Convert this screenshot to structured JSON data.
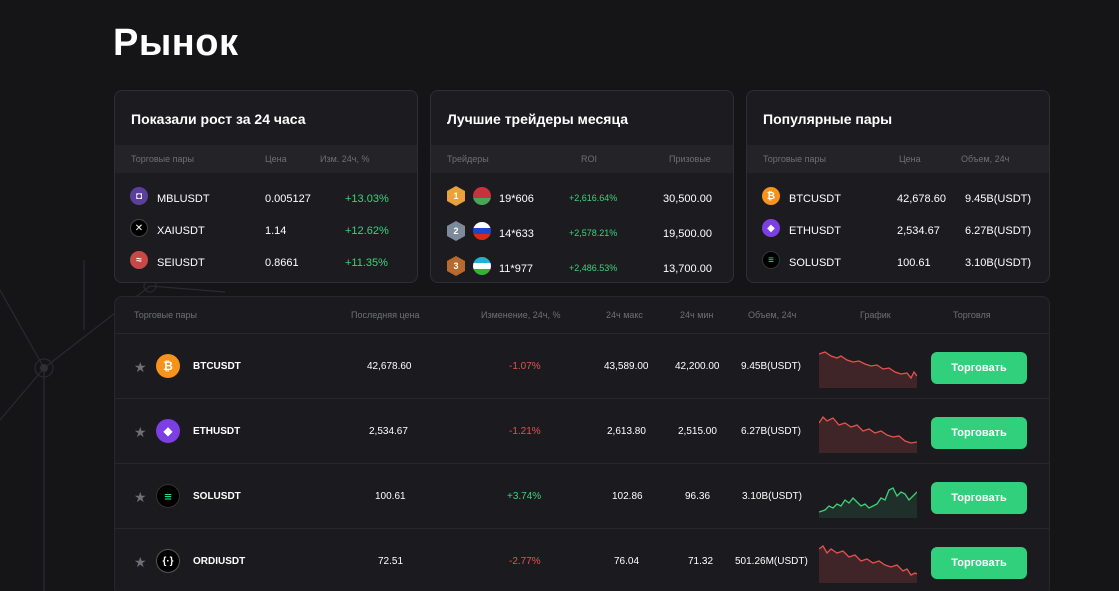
{
  "page_title": "Рынок",
  "colors": {
    "accent_green": "#31d07d",
    "negative_red": "#e5524e",
    "background": "#151518"
  },
  "growth": {
    "title": "Показали рост за 24 часа",
    "columns": [
      "Торговые пары",
      "Цена",
      "Изм. 24ч, %"
    ],
    "rows": [
      {
        "icon": "mblu-icon",
        "pair": "MBLUSDT",
        "price": "0.005127",
        "change": "+13.03%"
      },
      {
        "icon": "xai-icon",
        "pair": "XAIUSDT",
        "price": "1.14",
        "change": "+12.62%"
      },
      {
        "icon": "sei-icon",
        "pair": "SEIUSDT",
        "price": "0.8661",
        "change": "+11.35%"
      }
    ]
  },
  "traders": {
    "title": "Лучшие трейдеры месяца",
    "columns": [
      "Трейдеры",
      "ROI",
      "Призовые"
    ],
    "rows": [
      {
        "medal": "1",
        "name": "19*606",
        "roi": "+2,616.64%",
        "prize": "30,500.00"
      },
      {
        "medal": "2",
        "name": "14*633",
        "roi": "+2,578.21%",
        "prize": "19,500.00"
      },
      {
        "medal": "3",
        "name": "11*977",
        "roi": "+2,486.53%",
        "prize": "13,700.00"
      }
    ]
  },
  "popular": {
    "title": "Популярные пары",
    "columns": [
      "Торговые пары",
      "Цена",
      "Объем, 24ч"
    ],
    "rows": [
      {
        "icon": "bitcoin-icon",
        "pair": "BTCUSDT",
        "price": "42,678.60",
        "volume": "9.45B(USDT)"
      },
      {
        "icon": "ethereum-icon",
        "pair": "ETHUSDT",
        "price": "2,534.67",
        "volume": "6.27B(USDT)"
      },
      {
        "icon": "solana-icon",
        "pair": "SOLUSDT",
        "price": "100.61",
        "volume": "3.10B(USDT)"
      }
    ]
  },
  "market": {
    "columns": [
      "Торговые пары",
      "Последняя цена",
      "Изменение, 24ч, %",
      "24ч макс",
      "24ч мин",
      "Объем, 24ч",
      "График",
      "Торговля"
    ],
    "trade_label": "Торговать",
    "rows": [
      {
        "icon": "bitcoin-icon",
        "pair": "BTCUSDT",
        "last": "42,678.60",
        "change": "-1.07%",
        "high": "43,589.00",
        "low": "42,200.00",
        "volume": "9.45B(USDT)",
        "trend": "down"
      },
      {
        "icon": "ethereum-icon",
        "pair": "ETHUSDT",
        "last": "2,534.67",
        "change": "-1.21%",
        "high": "2,613.80",
        "low": "2,515.00",
        "volume": "6.27B(USDT)",
        "trend": "down"
      },
      {
        "icon": "solana-icon",
        "pair": "SOLUSDT",
        "last": "100.61",
        "change": "+3.74%",
        "high": "102.86",
        "low": "96.36",
        "volume": "3.10B(USDT)",
        "trend": "up"
      },
      {
        "icon": "ordi-icon",
        "pair": "ORDIUSDT",
        "last": "72.51",
        "change": "-2.77%",
        "high": "76.04",
        "low": "71.32",
        "volume": "501.26M(USDT)",
        "trend": "down"
      }
    ]
  }
}
